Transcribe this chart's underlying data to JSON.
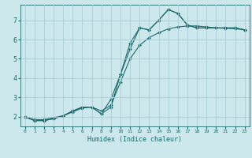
{
  "title": "",
  "xlabel": "Humidex (Indice chaleur)",
  "ylabel": "",
  "background_color": "#cce8ec",
  "grid_color": "#aacdd4",
  "line_color": "#1a6b6b",
  "xlim": [
    -0.5,
    23.5
  ],
  "ylim": [
    1.5,
    7.8
  ],
  "yticks": [
    2,
    3,
    4,
    5,
    6,
    7
  ],
  "xticks": [
    0,
    1,
    2,
    3,
    4,
    5,
    6,
    7,
    8,
    9,
    10,
    11,
    12,
    13,
    14,
    15,
    16,
    17,
    18,
    19,
    20,
    21,
    22,
    23
  ],
  "line1_x": [
    0,
    1,
    2,
    3,
    4,
    5,
    6,
    7,
    8,
    9,
    10,
    11,
    12,
    13,
    14,
    15,
    16,
    17,
    18,
    19,
    20,
    21,
    22,
    23
  ],
  "line1_y": [
    2.0,
    1.8,
    1.8,
    1.9,
    2.05,
    2.3,
    2.5,
    2.5,
    2.15,
    2.9,
    4.2,
    5.5,
    6.6,
    6.5,
    7.0,
    7.55,
    7.35,
    6.75,
    6.6,
    6.6,
    6.6,
    6.6,
    6.6,
    6.5
  ],
  "line2_x": [
    0,
    1,
    2,
    3,
    4,
    5,
    6,
    7,
    8,
    9,
    10,
    11,
    12,
    13,
    14,
    15,
    16,
    17,
    18,
    19,
    20,
    21,
    22,
    23
  ],
  "line2_y": [
    2.0,
    1.8,
    1.8,
    1.9,
    2.05,
    2.3,
    2.5,
    2.5,
    2.15,
    2.5,
    4.2,
    5.8,
    6.6,
    6.5,
    7.0,
    7.55,
    7.35,
    6.75,
    6.6,
    6.6,
    6.6,
    6.6,
    6.6,
    6.5
  ],
  "line3_x": [
    0,
    1,
    2,
    3,
    4,
    5,
    6,
    7,
    8,
    9,
    10,
    11,
    12,
    13,
    14,
    15,
    16,
    17,
    18,
    19,
    20,
    21,
    22,
    23
  ],
  "line3_y": [
    2.0,
    1.85,
    1.85,
    1.95,
    2.05,
    2.25,
    2.45,
    2.5,
    2.3,
    2.6,
    3.8,
    5.0,
    5.7,
    6.1,
    6.35,
    6.55,
    6.65,
    6.7,
    6.7,
    6.65,
    6.6,
    6.58,
    6.56,
    6.5
  ]
}
